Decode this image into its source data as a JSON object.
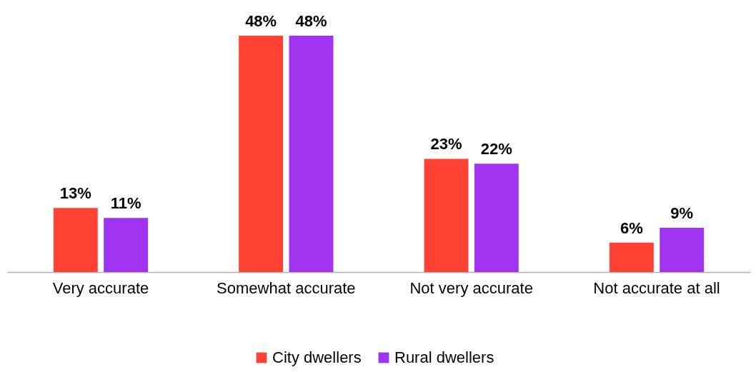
{
  "chart_data": {
    "type": "bar",
    "categories": [
      "Very accurate",
      "Somewhat accurate",
      "Not very accurate",
      "Not accurate at all"
    ],
    "series": [
      {
        "name": "City dwellers",
        "color": "#ff4233",
        "values": [
          13,
          48,
          23,
          6
        ],
        "value_labels": [
          "13%",
          "48%",
          "23%",
          "6%"
        ]
      },
      {
        "name": "Rural dwellers",
        "color": "#a033f0",
        "values": [
          11,
          48,
          22,
          9
        ],
        "value_labels": [
          "11%",
          "48%",
          "22%",
          "9%"
        ]
      }
    ],
    "legend": "bottom"
  }
}
